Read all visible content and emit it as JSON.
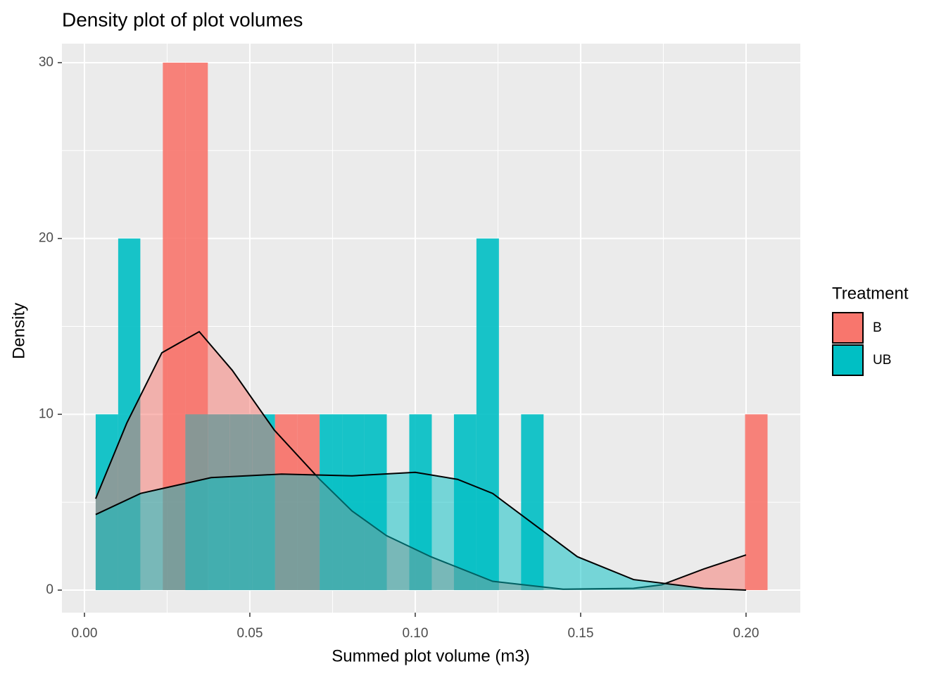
{
  "chart_data": {
    "type": "histogram",
    "title": "Density plot of plot volumes",
    "x_label": "Summed plot volume (m3)",
    "y_label": "Density",
    "legend_title": "Treatment",
    "legend_position": "right",
    "grid": true,
    "bins": [
      0.0034,
      0.0102,
      0.0169,
      0.0237,
      0.0305,
      0.0373,
      0.044,
      0.0508,
      0.0576,
      0.0643,
      0.0711,
      0.0779,
      0.0846,
      0.0914,
      0.0982,
      0.105,
      0.1117,
      0.1185,
      0.1253,
      0.132,
      0.1388,
      0.1456,
      0.1523,
      0.1591,
      0.1659,
      0.1727,
      0.1794,
      0.1862,
      0.193,
      0.1997,
      0.2065
    ],
    "series": [
      {
        "name": "B",
        "color": "#F8766D",
        "values": [
          0,
          0,
          0,
          30,
          30,
          0,
          0,
          0,
          10,
          10,
          0,
          0,
          0,
          0,
          0,
          0,
          0,
          0,
          0,
          0,
          0,
          0,
          0,
          0,
          0,
          0,
          0,
          0,
          0,
          10
        ],
        "density_x": [
          0.0034,
          0.0128,
          0.0234,
          0.0347,
          0.0447,
          0.0574,
          0.0711,
          0.0809,
          0.0913,
          0.1047,
          0.1234,
          0.1447,
          0.166,
          0.1745,
          0.1872,
          0.2
        ],
        "density_y": [
          5.2,
          9.5,
          13.5,
          14.7,
          12.5,
          9.1,
          6.3,
          4.5,
          3.1,
          1.9,
          0.5,
          0.05,
          0.1,
          0.3,
          1.2,
          2.0
        ]
      },
      {
        "name": "UB",
        "color": "#00BFC4",
        "values": [
          10,
          20,
          0,
          0,
          10,
          10,
          10,
          10,
          0,
          0,
          10,
          10,
          10,
          0,
          10,
          0,
          10,
          20,
          0,
          10,
          0,
          0,
          0,
          0,
          0,
          0,
          0,
          0,
          0,
          0
        ],
        "density_x": [
          0.0034,
          0.017,
          0.0383,
          0.0596,
          0.0809,
          0.1,
          0.1128,
          0.1234,
          0.1362,
          0.149,
          0.166,
          0.1872,
          0.2
        ],
        "density_y": [
          4.3,
          5.5,
          6.4,
          6.6,
          6.5,
          6.7,
          6.3,
          5.5,
          3.7,
          1.9,
          0.6,
          0.1,
          0
        ]
      }
    ],
    "xlim": [
      -0.0068,
      0.2164
    ],
    "ylim": [
      -1.28,
      31.08
    ],
    "xticks": [
      {
        "value": 0,
        "label": "0.00"
      },
      {
        "value": 0.05,
        "label": "0.05"
      },
      {
        "value": 0.1,
        "label": "0.10"
      },
      {
        "value": 0.15,
        "label": "0.15"
      },
      {
        "value": 0.2,
        "label": "0.20"
      }
    ],
    "yticks": [
      0,
      10,
      20,
      30
    ]
  }
}
